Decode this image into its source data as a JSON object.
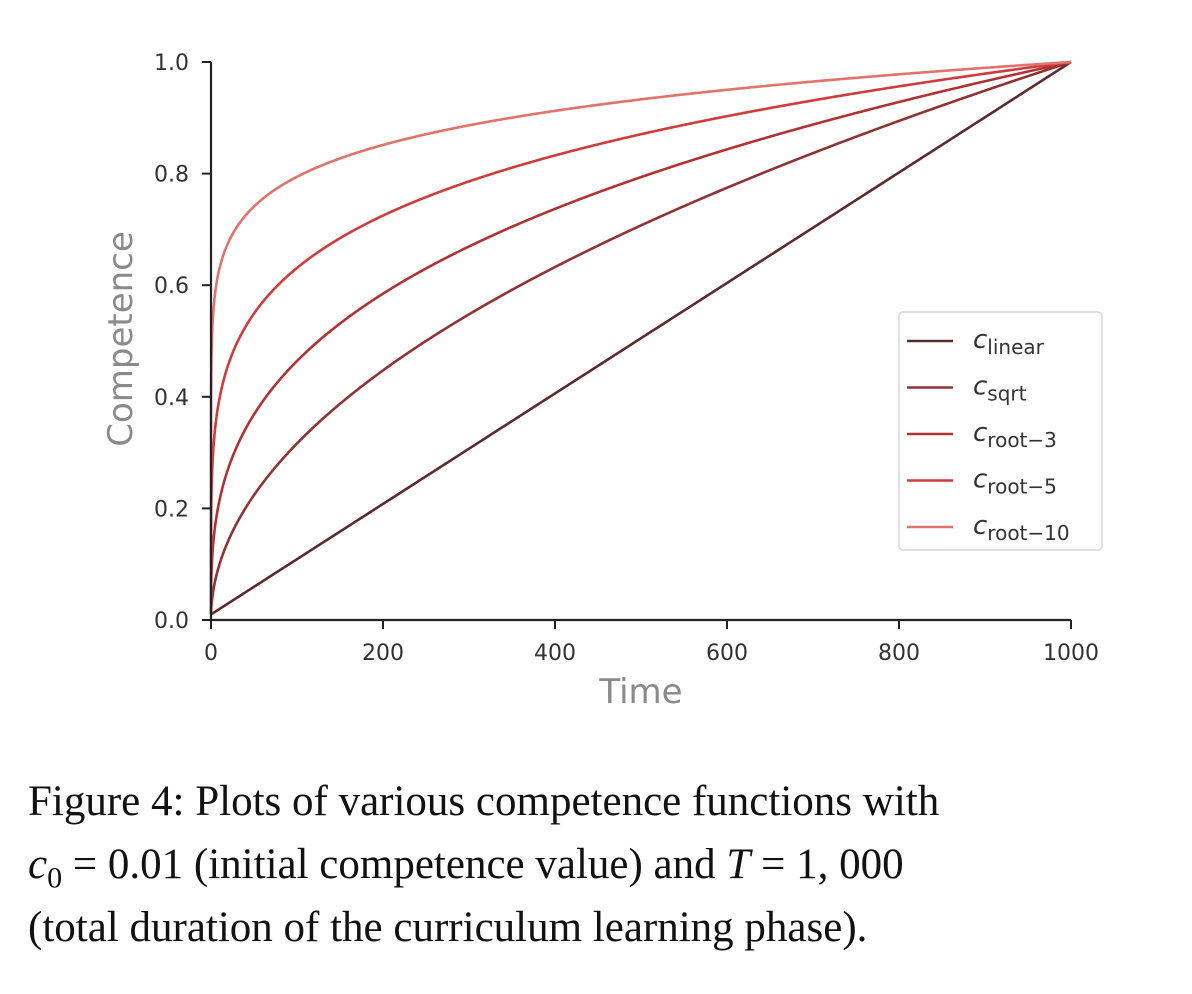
{
  "chart_data": {
    "type": "line",
    "title": "",
    "xlabel": "Time",
    "ylabel": "Competence",
    "xlim": [
      0,
      1000
    ],
    "ylim": [
      0,
      1.0
    ],
    "xticks": [
      0,
      200,
      400,
      600,
      800,
      1000
    ],
    "yticks": [
      0.0,
      0.2,
      0.4,
      0.6,
      0.8,
      1.0
    ],
    "xtick_labels": [
      "0",
      "200",
      "400",
      "600",
      "800",
      "1000"
    ],
    "ytick_labels": [
      "0.0",
      "0.2",
      "0.4",
      "0.6",
      "0.8",
      "1.0"
    ],
    "c0": 0.01,
    "T": 1000,
    "legend_position": "center-right",
    "series": [
      {
        "name": "c_linear",
        "base": "c",
        "sub": "linear",
        "p": 1,
        "color": "#5c2b2f"
      },
      {
        "name": "c_sqrt",
        "base": "c",
        "sub": "sqrt",
        "p": 2,
        "color": "#8f3334"
      },
      {
        "name": "c_root-3",
        "base": "c",
        "sub": "root−3",
        "p": 3,
        "color": "#b23233"
      },
      {
        "name": "c_root-5",
        "base": "c",
        "sub": "root−5",
        "p": 5,
        "color": "#cf3c3c"
      },
      {
        "name": "c_root-10",
        "base": "c",
        "sub": "root−10",
        "p": 10,
        "color": "#e0736b"
      }
    ]
  },
  "caption": {
    "label": "Figure 4:",
    "line1_text": "Plots of various competence functions with",
    "c0_symbol": "c",
    "c0_sub": "0",
    "c0_equals": "= 0.01",
    "line2_middle": "(initial competence value) and",
    "T_symbol": "T",
    "T_equals": "= 1, 000",
    "line3": "(total duration of the curriculum learning phase)."
  }
}
